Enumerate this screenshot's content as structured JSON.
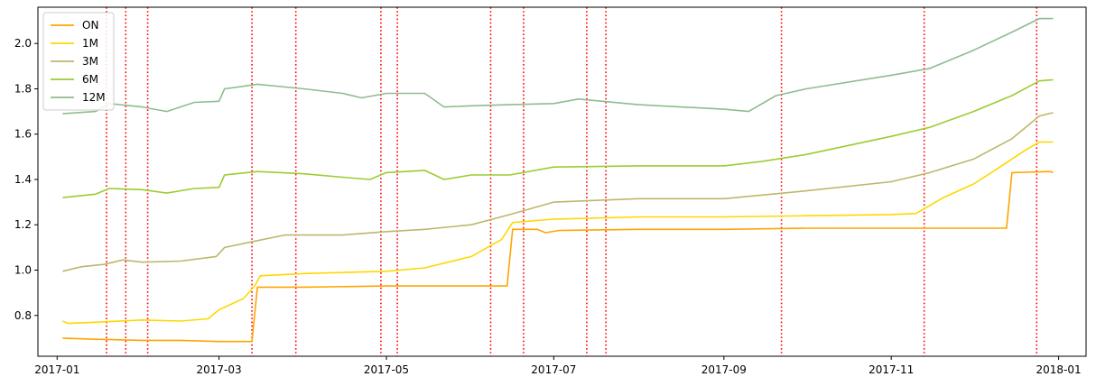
{
  "chart_data": {
    "type": "line",
    "title": "",
    "xlabel": "",
    "ylabel": "",
    "x_axis": {
      "type": "date",
      "range": [
        "2016-12-25",
        "2018-01-11"
      ],
      "ticks": [
        "2017-01-01",
        "2017-03-01",
        "2017-05-01",
        "2017-07-01",
        "2017-09-01",
        "2017-11-01",
        "2018-01-01"
      ],
      "tick_labels": [
        "2017-01",
        "2017-03",
        "2017-05",
        "2017-07",
        "2017-09",
        "2017-11",
        "2018-01"
      ]
    },
    "y_axis": {
      "range": [
        0.62,
        2.16
      ],
      "ticks": [
        0.8,
        1.0,
        1.2,
        1.4,
        1.6,
        1.8,
        2.0
      ],
      "tick_labels": [
        "0.8",
        "1.0",
        "1.2",
        "1.4",
        "1.6",
        "1.8",
        "2.0"
      ]
    },
    "grid": false,
    "legend": {
      "position": "top-left"
    },
    "series": [
      {
        "name": "ON",
        "color": "#FFA500",
        "points": [
          [
            "2017-01-03",
            0.7
          ],
          [
            "2017-01-15",
            0.695
          ],
          [
            "2017-02-01",
            0.69
          ],
          [
            "2017-02-15",
            0.69
          ],
          [
            "2017-03-01",
            0.685
          ],
          [
            "2017-03-13",
            0.685
          ],
          [
            "2017-03-15",
            0.925
          ],
          [
            "2017-04-01",
            0.925
          ],
          [
            "2017-05-01",
            0.93
          ],
          [
            "2017-06-01",
            0.93
          ],
          [
            "2017-06-14",
            0.93
          ],
          [
            "2017-06-16",
            1.18
          ],
          [
            "2017-06-25",
            1.18
          ],
          [
            "2017-06-28",
            1.165
          ],
          [
            "2017-07-03",
            1.175
          ],
          [
            "2017-08-01",
            1.18
          ],
          [
            "2017-09-01",
            1.18
          ],
          [
            "2017-10-01",
            1.185
          ],
          [
            "2017-11-01",
            1.185
          ],
          [
            "2017-12-01",
            1.185
          ],
          [
            "2017-12-13",
            1.185
          ],
          [
            "2017-12-15",
            1.43
          ],
          [
            "2017-12-29",
            1.435
          ],
          [
            "2017-12-30",
            1.43
          ]
        ]
      },
      {
        "name": "1M",
        "color": "#FFD700",
        "points": [
          [
            "2017-01-03",
            0.775
          ],
          [
            "2017-01-05",
            0.765
          ],
          [
            "2017-01-15",
            0.77
          ],
          [
            "2017-02-01",
            0.78
          ],
          [
            "2017-02-15",
            0.775
          ],
          [
            "2017-02-25",
            0.785
          ],
          [
            "2017-03-01",
            0.825
          ],
          [
            "2017-03-10",
            0.875
          ],
          [
            "2017-03-14",
            0.93
          ],
          [
            "2017-03-16",
            0.975
          ],
          [
            "2017-04-01",
            0.985
          ],
          [
            "2017-05-01",
            0.995
          ],
          [
            "2017-05-15",
            1.01
          ],
          [
            "2017-06-01",
            1.06
          ],
          [
            "2017-06-12",
            1.135
          ],
          [
            "2017-06-16",
            1.21
          ],
          [
            "2017-07-01",
            1.225
          ],
          [
            "2017-08-01",
            1.235
          ],
          [
            "2017-09-01",
            1.235
          ],
          [
            "2017-10-01",
            1.24
          ],
          [
            "2017-11-01",
            1.245
          ],
          [
            "2017-11-10",
            1.25
          ],
          [
            "2017-11-20",
            1.32
          ],
          [
            "2017-12-01",
            1.38
          ],
          [
            "2017-12-10",
            1.45
          ],
          [
            "2017-12-20",
            1.53
          ],
          [
            "2017-12-25",
            1.565
          ],
          [
            "2017-12-30",
            1.565
          ]
        ]
      },
      {
        "name": "3M",
        "color": "#BDB76B",
        "points": [
          [
            "2017-01-03",
            0.995
          ],
          [
            "2017-01-10",
            1.015
          ],
          [
            "2017-01-18",
            1.025
          ],
          [
            "2017-01-25",
            1.045
          ],
          [
            "2017-02-01",
            1.035
          ],
          [
            "2017-02-15",
            1.04
          ],
          [
            "2017-02-28",
            1.06
          ],
          [
            "2017-03-03",
            1.1
          ],
          [
            "2017-03-15",
            1.13
          ],
          [
            "2017-03-25",
            1.155
          ],
          [
            "2017-04-15",
            1.155
          ],
          [
            "2017-05-01",
            1.17
          ],
          [
            "2017-05-15",
            1.18
          ],
          [
            "2017-06-01",
            1.2
          ],
          [
            "2017-06-15",
            1.245
          ],
          [
            "2017-07-01",
            1.3
          ],
          [
            "2017-08-01",
            1.315
          ],
          [
            "2017-09-01",
            1.315
          ],
          [
            "2017-10-01",
            1.35
          ],
          [
            "2017-11-01",
            1.39
          ],
          [
            "2017-11-15",
            1.43
          ],
          [
            "2017-12-01",
            1.49
          ],
          [
            "2017-12-15",
            1.58
          ],
          [
            "2017-12-25",
            1.68
          ],
          [
            "2017-12-30",
            1.695
          ]
        ]
      },
      {
        "name": "6M",
        "color": "#9ACD32",
        "points": [
          [
            "2017-01-03",
            1.32
          ],
          [
            "2017-01-15",
            1.335
          ],
          [
            "2017-01-20",
            1.36
          ],
          [
            "2017-02-01",
            1.355
          ],
          [
            "2017-02-10",
            1.34
          ],
          [
            "2017-02-20",
            1.36
          ],
          [
            "2017-03-01",
            1.365
          ],
          [
            "2017-03-03",
            1.42
          ],
          [
            "2017-03-15",
            1.435
          ],
          [
            "2017-04-01",
            1.425
          ],
          [
            "2017-04-15",
            1.41
          ],
          [
            "2017-04-25",
            1.4
          ],
          [
            "2017-05-01",
            1.43
          ],
          [
            "2017-05-15",
            1.44
          ],
          [
            "2017-05-22",
            1.4
          ],
          [
            "2017-06-01",
            1.42
          ],
          [
            "2017-06-15",
            1.42
          ],
          [
            "2017-07-01",
            1.455
          ],
          [
            "2017-08-01",
            1.46
          ],
          [
            "2017-09-01",
            1.46
          ],
          [
            "2017-09-15",
            1.48
          ],
          [
            "2017-10-01",
            1.51
          ],
          [
            "2017-11-01",
            1.59
          ],
          [
            "2017-11-15",
            1.63
          ],
          [
            "2017-12-01",
            1.7
          ],
          [
            "2017-12-15",
            1.77
          ],
          [
            "2017-12-25",
            1.835
          ],
          [
            "2017-12-30",
            1.84
          ]
        ]
      },
      {
        "name": "12M",
        "color": "#8FBC8F",
        "points": [
          [
            "2017-01-03",
            1.69
          ],
          [
            "2017-01-15",
            1.7
          ],
          [
            "2017-01-20",
            1.735
          ],
          [
            "2017-02-01",
            1.72
          ],
          [
            "2017-02-10",
            1.7
          ],
          [
            "2017-02-20",
            1.74
          ],
          [
            "2017-03-01",
            1.745
          ],
          [
            "2017-03-03",
            1.8
          ],
          [
            "2017-03-15",
            1.82
          ],
          [
            "2017-04-01",
            1.8
          ],
          [
            "2017-04-15",
            1.78
          ],
          [
            "2017-04-22",
            1.76
          ],
          [
            "2017-05-01",
            1.78
          ],
          [
            "2017-05-15",
            1.78
          ],
          [
            "2017-05-22",
            1.72
          ],
          [
            "2017-06-01",
            1.725
          ],
          [
            "2017-06-15",
            1.73
          ],
          [
            "2017-07-01",
            1.735
          ],
          [
            "2017-07-10",
            1.755
          ],
          [
            "2017-08-01",
            1.73
          ],
          [
            "2017-09-01",
            1.71
          ],
          [
            "2017-09-10",
            1.7
          ],
          [
            "2017-09-20",
            1.77
          ],
          [
            "2017-10-01",
            1.8
          ],
          [
            "2017-11-01",
            1.86
          ],
          [
            "2017-11-15",
            1.89
          ],
          [
            "2017-12-01",
            1.97
          ],
          [
            "2017-12-15",
            2.05
          ],
          [
            "2017-12-25",
            2.11
          ],
          [
            "2017-12-30",
            2.11
          ]
        ]
      }
    ],
    "vertical_lines": {
      "color": "#FF0000",
      "style": "dotted",
      "dates": [
        "2017-01-19",
        "2017-01-26",
        "2017-02-03",
        "2017-03-13",
        "2017-03-29",
        "2017-04-29",
        "2017-05-05",
        "2017-06-08",
        "2017-06-20",
        "2017-07-13",
        "2017-07-20",
        "2017-09-22",
        "2017-11-13",
        "2017-12-24"
      ]
    }
  }
}
